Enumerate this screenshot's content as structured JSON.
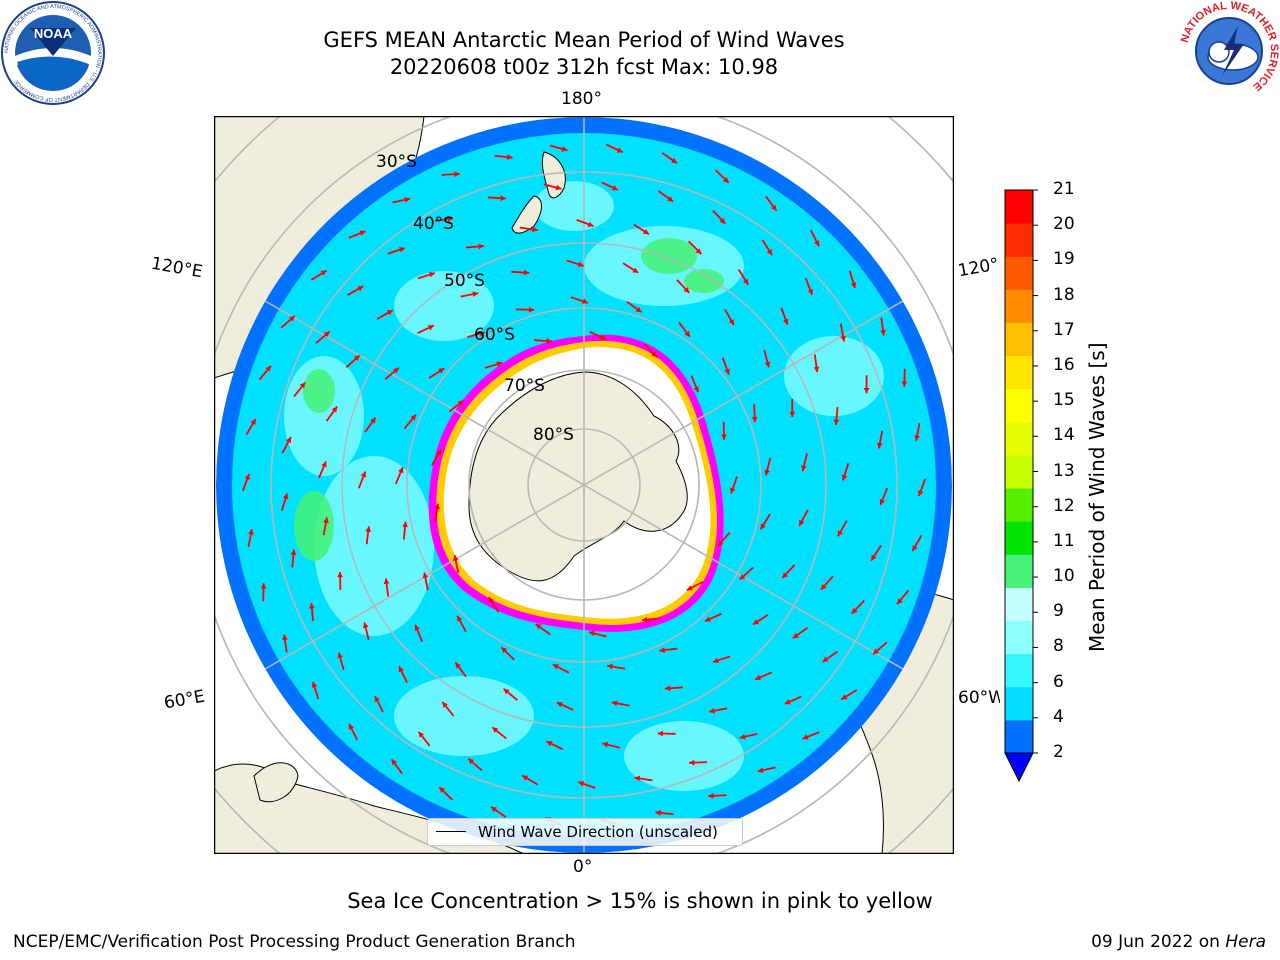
{
  "title": {
    "line1": "GEFS MEAN Antarctic Mean Period of Wind Waves",
    "line2": "20220608 t00z 312h fcst   Max: 10.98"
  },
  "longitude_labels": {
    "top": "180°",
    "bottom": "0°",
    "upper_left": "120°E",
    "upper_right": "120°W",
    "lower_left": "60°E",
    "lower_right": "60°W"
  },
  "latitude_labels": [
    "30°S",
    "40°S",
    "50°S",
    "60°S",
    "70°S",
    "80°S"
  ],
  "legend": {
    "label": "Wind Wave Direction (unscaled)"
  },
  "colorbar": {
    "label": "Mean Period of Wind Waves [s]",
    "ticks": [
      "21",
      "20",
      "19",
      "18",
      "17",
      "16",
      "15",
      "14",
      "13",
      "12",
      "11",
      "10",
      "9",
      "8",
      "6",
      "4",
      "2"
    ],
    "bin_edges": [
      2,
      4,
      6,
      7,
      8,
      9,
      10,
      11,
      12,
      13,
      14,
      15,
      16,
      17,
      18,
      19,
      20,
      21
    ],
    "colors": [
      "#0072ff",
      "#00ddff",
      "#35f5ff",
      "#8cffff",
      "#c6ffff",
      "#45f275",
      "#00e400",
      "#55f000",
      "#c8ff00",
      "#e6ff00",
      "#ffff00",
      "#ffe600",
      "#ffc000",
      "#ff8c00",
      "#ff5a00",
      "#ff2d00",
      "#ff0000"
    ],
    "extend_color": "#0000ff"
  },
  "map_colors": {
    "land": "#efeedc",
    "ocean_main": "#00e1ff",
    "ocean_light": "#8cfdff",
    "ocean_dark": "#1a7fff",
    "ice_edge": "#ff00ff",
    "ice_edge_inner": "#ffcc00",
    "arrow": "#ff0000",
    "grid": "#b7b7b7"
  },
  "footnote": "Sea Ice Concentration > 15% is shown in pink to yellow",
  "footer": {
    "credit": "NCEP/EMC/Verification Post Processing Product Generation Branch",
    "date": "09 Jun 2022 on",
    "host": "Hera"
  },
  "logos": {
    "left": "NOAA",
    "left_ring": "NATIONAL OCEANIC AND ATMOSPHERIC ADMINISTRATION · U.S. DEPARTMENT OF COMMERCE",
    "right": "NATIONAL WEATHER SERVICE"
  }
}
